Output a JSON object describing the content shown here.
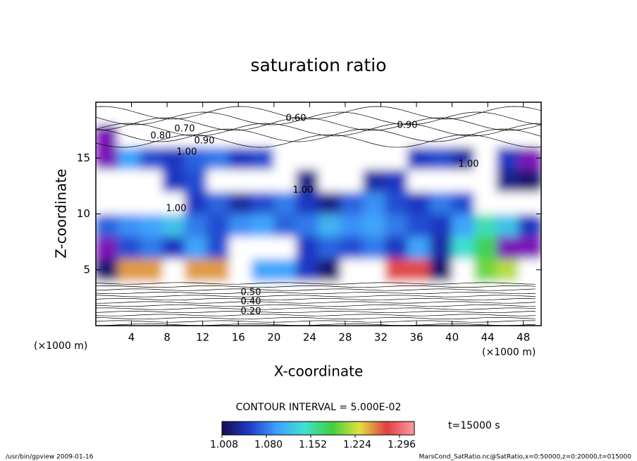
{
  "chart_data": {
    "type": "heatmap",
    "title": "saturation ratio",
    "xlabel": "X-coordinate",
    "ylabel": "Z-coordinate",
    "x_unit_label": "(×1000 m)",
    "xlim": [
      0,
      50
    ],
    "ylim": [
      0,
      20
    ],
    "xticks": [
      4,
      8,
      12,
      16,
      20,
      24,
      28,
      32,
      36,
      40,
      44,
      48
    ],
    "yticks": [
      5,
      10,
      15
    ],
    "contour_labels": [
      "0.70",
      "0.80",
      "0.90",
      "0.60",
      "1.00",
      "1.00",
      "1.00",
      "1.00",
      "0.90",
      "0.20",
      "0.40",
      "0.50"
    ],
    "contour_interval": "CONTOUR INTERVAL = 5.000E-02",
    "time_label": "t=15000 s",
    "footer_left": "/usr/bin/gpview   2009-01-16",
    "footer_right": "MarsCond_SatRatio.nc@SatRatio,x=0:50000,z=0:20000,t=015000",
    "clim": [
      1.008,
      1.32
    ],
    "colorbar_ticks": [
      1.008,
      {
        "value": 1.08,
        "label": "1.080"
      },
      1.152,
      1.224,
      1.296
    ],
    "colormap": [
      "#1a0a50",
      "#1f3cc8",
      "#3fa0ff",
      "#40e0d0",
      "#40d040",
      "#e0e040",
      "#e04040",
      "#ff9aa0"
    ],
    "under_color": "#ffffff",
    "over_color": "#7a18b8",
    "z": [
      [
        0.2,
        0.2,
        0.2,
        0.2,
        0.2,
        0.2,
        0.2,
        0.2,
        0.2,
        0.2,
        0.2,
        0.2,
        0.2,
        0.2,
        0.2,
        0.2,
        0.2,
        0.2,
        0.2,
        0.2
      ],
      [
        0.5,
        0.5,
        0.5,
        0.5,
        0.5,
        0.5,
        0.5,
        0.5,
        0.5,
        0.5,
        0.5,
        0.5,
        0.5,
        0.5,
        0.5,
        0.5,
        0.5,
        0.5,
        0.5,
        0.5
      ],
      [
        1.02,
        1.25,
        1.25,
        0.98,
        1.25,
        1.25,
        0.98,
        1.1,
        1.1,
        1.05,
        1.02,
        0.98,
        0.99,
        1.28,
        1.28,
        1.02,
        0.99,
        1.2,
        1.22,
        0.99
      ],
      [
        1.35,
        1.06,
        1.08,
        1.05,
        1.1,
        1.06,
        0.97,
        0.96,
        0.98,
        1.05,
        1.07,
        1.06,
        1.08,
        1.05,
        1.1,
        1.04,
        1.14,
        1.18,
        1.35,
        1.35
      ],
      [
        1.07,
        1.09,
        1.1,
        1.12,
        1.08,
        1.06,
        1.09,
        1.1,
        1.07,
        1.08,
        1.11,
        1.09,
        1.1,
        1.08,
        1.06,
        1.05,
        1.1,
        1.15,
        1.12,
        1.05
      ],
      [
        0.97,
        0.98,
        0.96,
        0.99,
        1.05,
        1.07,
        1.04,
        1.06,
        1.08,
        1.05,
        1.03,
        1.07,
        1.09,
        1.06,
        1.05,
        1.08,
        1.06,
        0.98,
        0.97,
        0.96
      ],
      [
        0.95,
        0.96,
        0.97,
        1.05,
        1.06,
        0.97,
        0.96,
        0.95,
        0.97,
        1.03,
        0.96,
        0.95,
        1.04,
        1.05,
        0.96,
        0.95,
        0.96,
        0.95,
        1.03,
        1.02
      ],
      [
        1.35,
        1.1,
        1.06,
        1.05,
        1.07,
        1.08,
        1.05,
        1.06,
        0.97,
        0.96,
        0.95,
        0.97,
        0.96,
        0.96,
        1.05,
        1.06,
        1.04,
        0.97,
        1.05,
        1.35
      ],
      [
        1.35,
        0.88,
        0.85,
        0.86,
        0.87,
        0.88,
        0.86,
        0.85,
        0.84,
        0.86,
        0.87,
        0.85,
        0.84,
        0.86,
        0.88,
        0.9,
        0.87,
        0.86,
        0.88,
        0.9
      ],
      [
        0.75,
        0.75,
        0.75,
        0.75,
        0.75,
        0.75,
        0.75,
        0.75,
        0.75,
        0.75,
        0.75,
        0.75,
        0.75,
        0.75,
        0.75,
        0.75,
        0.75,
        0.75,
        0.75,
        0.75
      ]
    ]
  }
}
